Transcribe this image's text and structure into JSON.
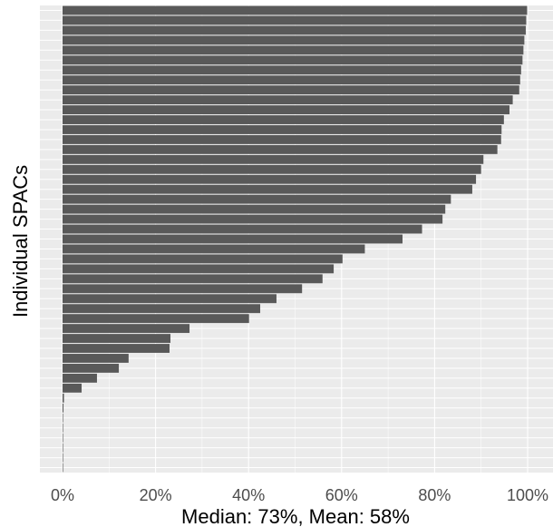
{
  "chart_data": {
    "type": "bar",
    "orientation": "horizontal",
    "title": "",
    "xlabel": "Median: 73%, Mean: 58%",
    "ylabel": "Individual SPACs",
    "x_ticks": [
      "0%",
      "20%",
      "40%",
      "60%",
      "80%",
      "100%"
    ],
    "xlim": [
      0,
      100
    ],
    "grid": true,
    "values": [
      99.9,
      99.7,
      99.6,
      99.3,
      99.1,
      98.9,
      98.6,
      98.4,
      98.2,
      96.8,
      96.1,
      94.9,
      94.4,
      94.3,
      93.5,
      90.5,
      90.0,
      88.9,
      88.1,
      83.5,
      82.3,
      81.7,
      77.3,
      73.1,
      65.0,
      60.2,
      58.3,
      55.9,
      51.5,
      46.0,
      42.5,
      40.1,
      27.3,
      23.2,
      23.0,
      14.2,
      12.1,
      7.4,
      4.1,
      0.3,
      0.2,
      0.1,
      0.1,
      0.1,
      0.05,
      0.05,
      0.05
    ],
    "colors": {
      "bar": "#595959",
      "panel": "#ebebeb",
      "grid": "#ffffff"
    }
  }
}
